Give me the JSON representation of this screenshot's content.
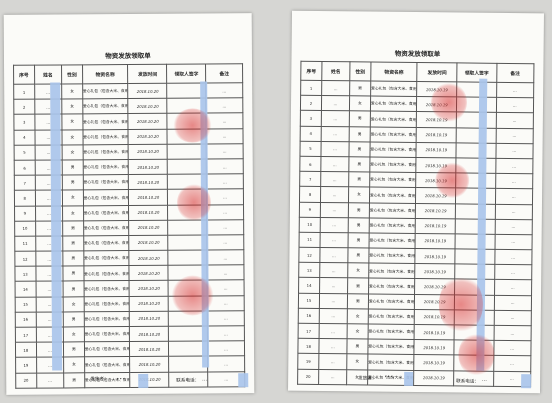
{
  "title": "物资发放领取单",
  "columns": [
    "序号",
    "姓名",
    "性别",
    "物资名称",
    "发放时间",
    "领取人签字",
    "备注"
  ],
  "item_text": "爱心礼包（包含大米、食用油、面粉）",
  "footer": {
    "issuer_label": "发放者：",
    "phone_label": "联系电话："
  },
  "sheets": [
    {
      "sign_date": "2018.10.20",
      "issuer_signature": "…",
      "phone_partial": "…",
      "rows": [
        {
          "no": "1",
          "name": "…",
          "gender": "女",
          "remark": "…"
        },
        {
          "no": "2",
          "name": "…",
          "gender": "女",
          "remark": "…"
        },
        {
          "no": "3",
          "name": "…",
          "gender": "女",
          "remark": "…"
        },
        {
          "no": "4",
          "name": "…",
          "gender": "女",
          "remark": "…"
        },
        {
          "no": "5",
          "name": "…",
          "gender": "女",
          "remark": "…"
        },
        {
          "no": "6",
          "name": "…",
          "gender": "男",
          "remark": "…"
        },
        {
          "no": "7",
          "name": "…",
          "gender": "男",
          "remark": "…"
        },
        {
          "no": "8",
          "name": "…",
          "gender": "女",
          "remark": "…"
        },
        {
          "no": "9",
          "name": "…",
          "gender": "女",
          "remark": "…"
        },
        {
          "no": "10",
          "name": "…",
          "gender": "男",
          "remark": "…"
        },
        {
          "no": "11",
          "name": "…",
          "gender": "男",
          "remark": "…"
        },
        {
          "no": "12",
          "name": "…",
          "gender": "男",
          "remark": "…"
        },
        {
          "no": "13",
          "name": "…",
          "gender": "男",
          "remark": "…"
        },
        {
          "no": "14",
          "name": "…",
          "gender": "男",
          "remark": "…"
        },
        {
          "no": "15",
          "name": "…",
          "gender": "女",
          "remark": "…"
        },
        {
          "no": "16",
          "name": "…",
          "gender": "男",
          "remark": "…"
        },
        {
          "no": "17",
          "name": "…",
          "gender": "女",
          "remark": "…"
        },
        {
          "no": "18",
          "name": "…",
          "gender": "男",
          "remark": "…"
        },
        {
          "no": "19",
          "name": "…",
          "gender": "女",
          "remark": "…"
        },
        {
          "no": "20",
          "name": "…",
          "gender": "男",
          "remark": "…"
        }
      ]
    },
    {
      "sign_date": "2018.10.19",
      "issuer_signature": "…",
      "phone_partial": "…",
      "rows": [
        {
          "no": "1",
          "name": "…",
          "gender": "男",
          "remark": "…"
        },
        {
          "no": "2",
          "name": "…",
          "gender": "女",
          "remark": "…"
        },
        {
          "no": "3",
          "name": "…",
          "gender": "男",
          "remark": "…"
        },
        {
          "no": "4",
          "name": "…",
          "gender": "男",
          "remark": "…"
        },
        {
          "no": "5",
          "name": "…",
          "gender": "男",
          "remark": "…"
        },
        {
          "no": "6",
          "name": "…",
          "gender": "男",
          "remark": "…"
        },
        {
          "no": "7",
          "name": "…",
          "gender": "男",
          "remark": "…"
        },
        {
          "no": "8",
          "name": "…",
          "gender": "女",
          "remark": "…"
        },
        {
          "no": "9",
          "name": "…",
          "gender": "男",
          "remark": "…"
        },
        {
          "no": "10",
          "name": "…",
          "gender": "男",
          "remark": "…"
        },
        {
          "no": "11",
          "name": "…",
          "gender": "男",
          "remark": "…"
        },
        {
          "no": "12",
          "name": "…",
          "gender": "男",
          "remark": "…"
        },
        {
          "no": "13",
          "name": "…",
          "gender": "女",
          "remark": "…"
        },
        {
          "no": "14",
          "name": "…",
          "gender": "男",
          "remark": "…"
        },
        {
          "no": "15",
          "name": "…",
          "gender": "男",
          "remark": "…"
        },
        {
          "no": "16",
          "name": "…",
          "gender": "女",
          "remark": "…"
        },
        {
          "no": "17",
          "name": "…",
          "gender": "女",
          "remark": "…"
        },
        {
          "no": "18",
          "name": "…",
          "gender": "男",
          "remark": "…"
        },
        {
          "no": "19",
          "name": "…",
          "gender": "女",
          "remark": "…"
        },
        {
          "no": "20",
          "name": "…",
          "gender": "女",
          "remark": "…"
        }
      ]
    }
  ]
}
